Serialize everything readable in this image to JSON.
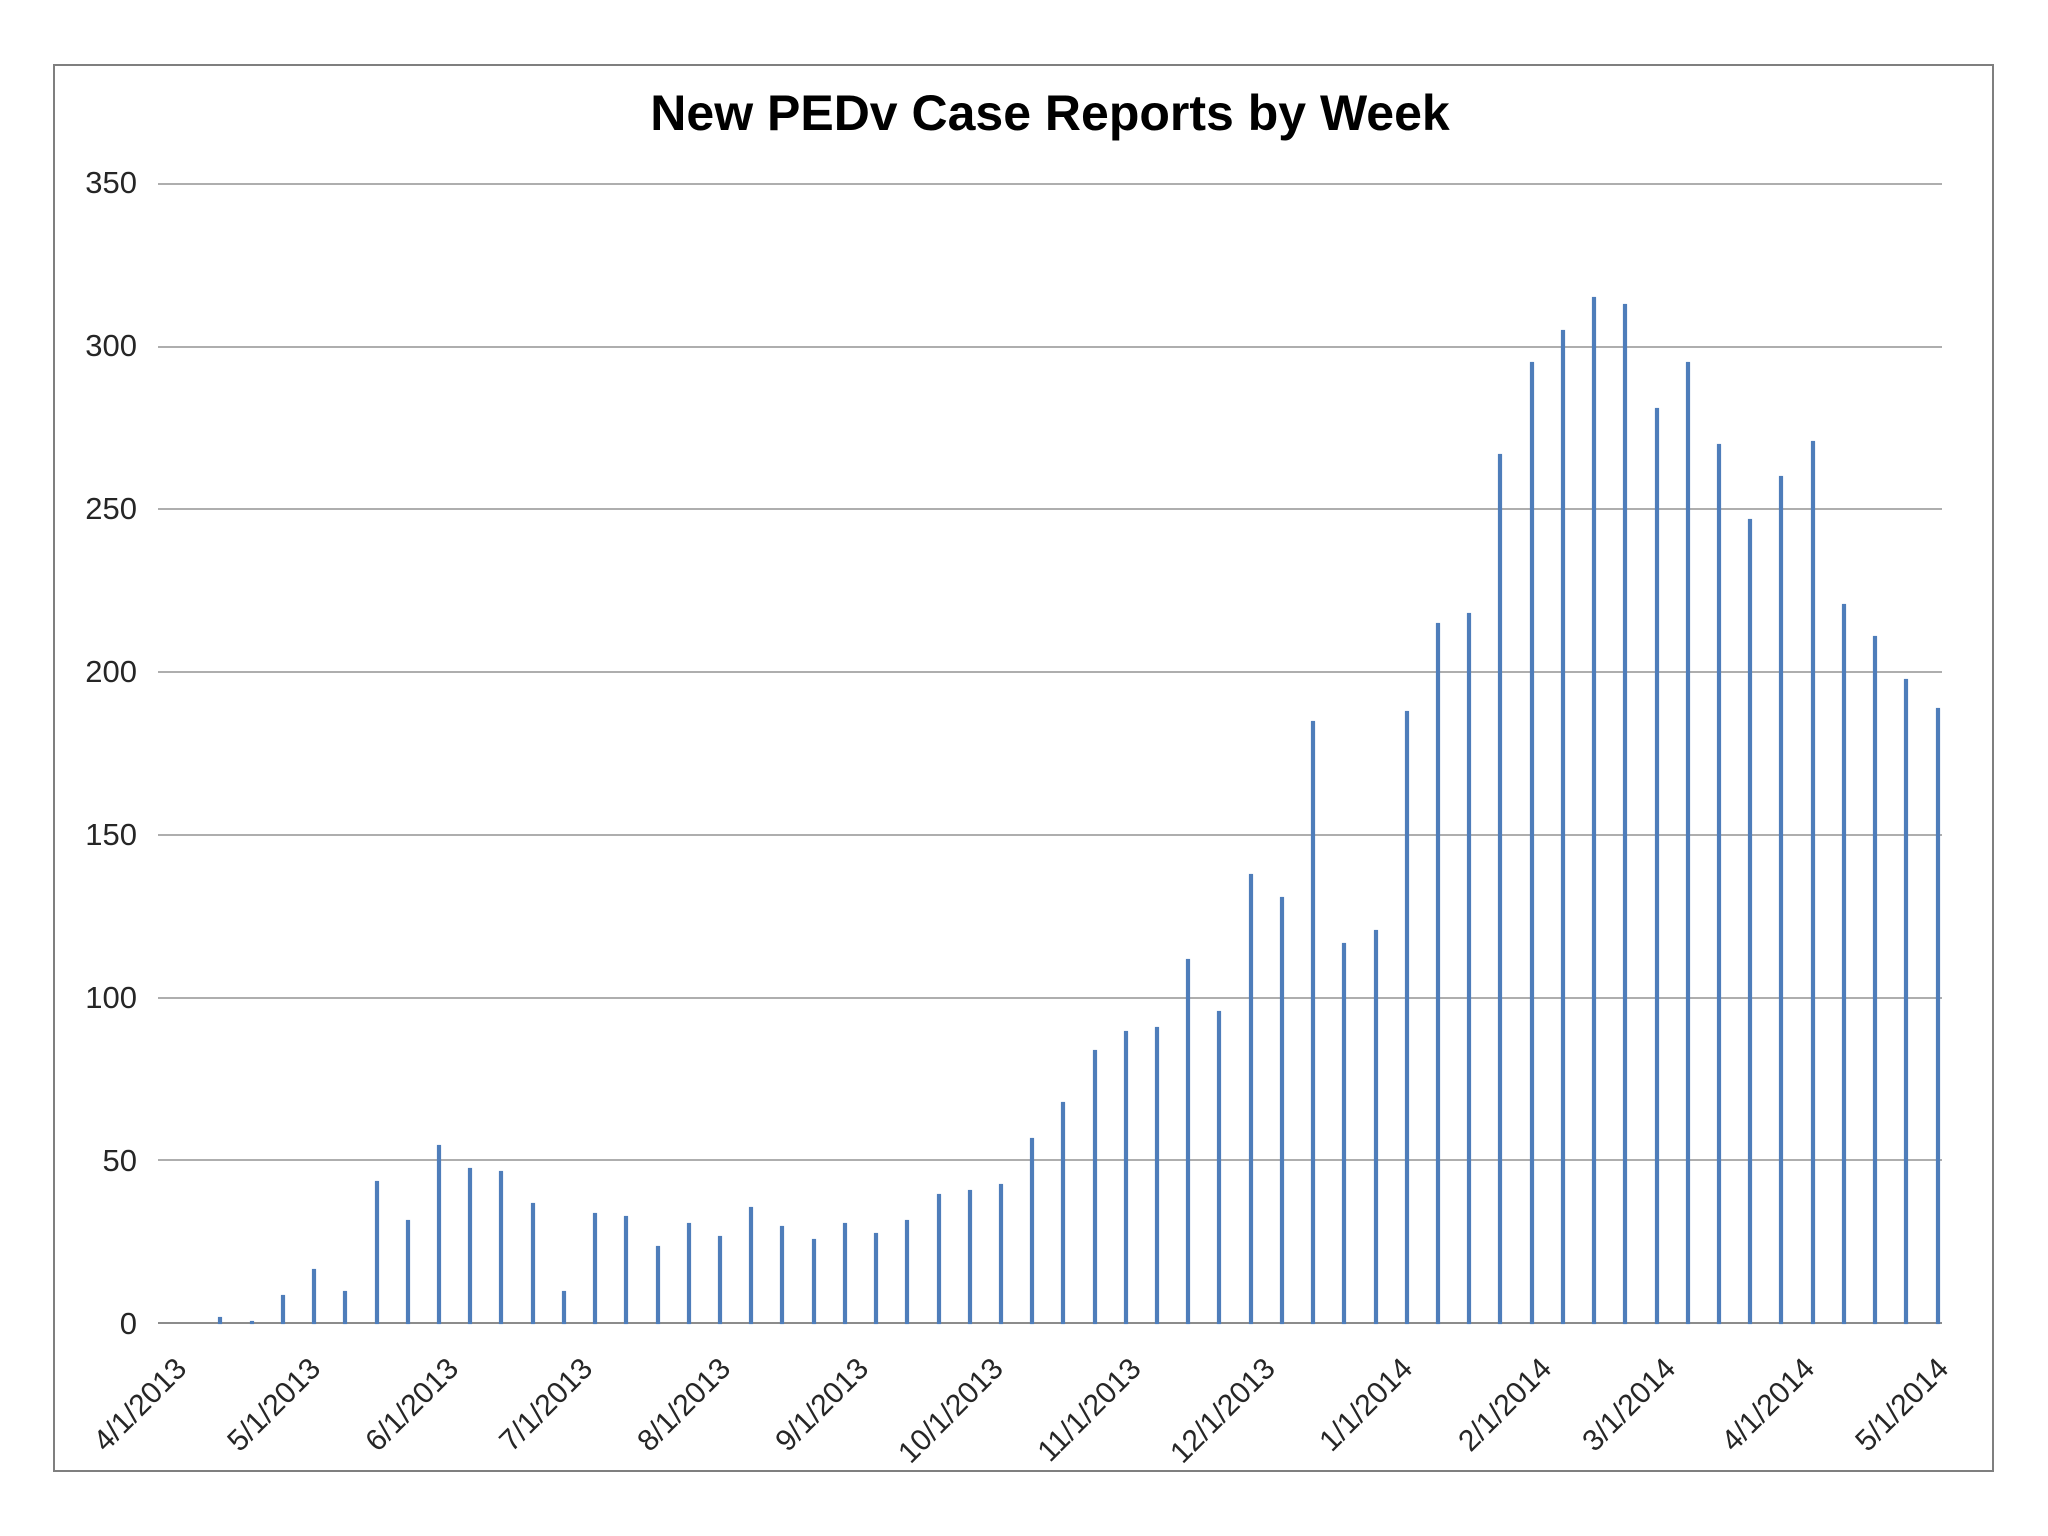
{
  "page": {
    "background": "#ffffff",
    "frame_border_color": "#7f7f7f"
  },
  "chart_data": {
    "type": "bar",
    "title": "New PEDv Case Reports by Week",
    "xlabel": "",
    "ylabel": "",
    "ylim": [
      0,
      350
    ],
    "yticks": [
      0,
      50,
      100,
      150,
      200,
      250,
      300,
      350
    ],
    "grid": "horizontal-only",
    "legend": "none",
    "bar_color": "#4e7dba",
    "gridline_color": "#aeaeae",
    "axis_line_color": "#8c8c8c",
    "tick_label_color": "#262626",
    "x_axis": {
      "domain_start_date": "3/28/2013",
      "domain_days": 400,
      "tick_labels": [
        "4/1/2013",
        "5/1/2013",
        "6/1/2013",
        "7/1/2013",
        "8/1/2013",
        "9/1/2013",
        "10/1/2013",
        "11/1/2013",
        "12/1/2013",
        "1/1/2014",
        "2/1/2014",
        "3/1/2014",
        "4/1/2014",
        "5/1/2014"
      ],
      "tick_day_offsets": [
        4,
        34,
        65,
        95,
        126,
        157,
        187,
        218,
        248,
        279,
        310,
        338,
        369,
        399
      ]
    },
    "bars_start_day_offset": 14,
    "bars_day_spacing": 7,
    "series": [
      {
        "name": "New PEDv case reports",
        "week_of": [
          "4/11/2013",
          "4/18/2013",
          "4/25/2013",
          "5/2/2013",
          "5/9/2013",
          "5/16/2013",
          "5/23/2013",
          "5/30/2013",
          "6/6/2013",
          "6/13/2013",
          "6/20/2013",
          "6/27/2013",
          "7/4/2013",
          "7/11/2013",
          "7/18/2013",
          "7/25/2013",
          "8/1/2013",
          "8/8/2013",
          "8/15/2013",
          "8/22/2013",
          "8/29/2013",
          "9/5/2013",
          "9/12/2013",
          "9/19/2013",
          "9/26/2013",
          "10/3/2013",
          "10/10/2013",
          "10/17/2013",
          "10/24/2013",
          "10/31/2013",
          "11/7/2013",
          "11/14/2013",
          "11/21/2013",
          "11/28/2013",
          "12/5/2013",
          "12/12/2013",
          "12/19/2013",
          "12/26/2013",
          "1/2/2014",
          "1/9/2014",
          "1/16/2014",
          "1/23/2014",
          "1/30/2014",
          "2/6/2014",
          "2/13/2014",
          "2/20/2014",
          "2/27/2014",
          "3/6/2014",
          "3/13/2014",
          "3/20/2014",
          "3/27/2014",
          "4/3/2014",
          "4/10/2014",
          "4/17/2014",
          "4/24/2014",
          "5/1/2014"
        ],
        "values": [
          2,
          1,
          9,
          17,
          10,
          44,
          32,
          55,
          48,
          47,
          37,
          10,
          34,
          33,
          24,
          31,
          27,
          36,
          30,
          26,
          31,
          28,
          32,
          40,
          41,
          43,
          57,
          68,
          84,
          90,
          91,
          112,
          96,
          138,
          131,
          185,
          117,
          121,
          188,
          215,
          218,
          267,
          295,
          305,
          315,
          313,
          281,
          295,
          270,
          247,
          260,
          271,
          221,
          211,
          198,
          189
        ]
      }
    ]
  }
}
